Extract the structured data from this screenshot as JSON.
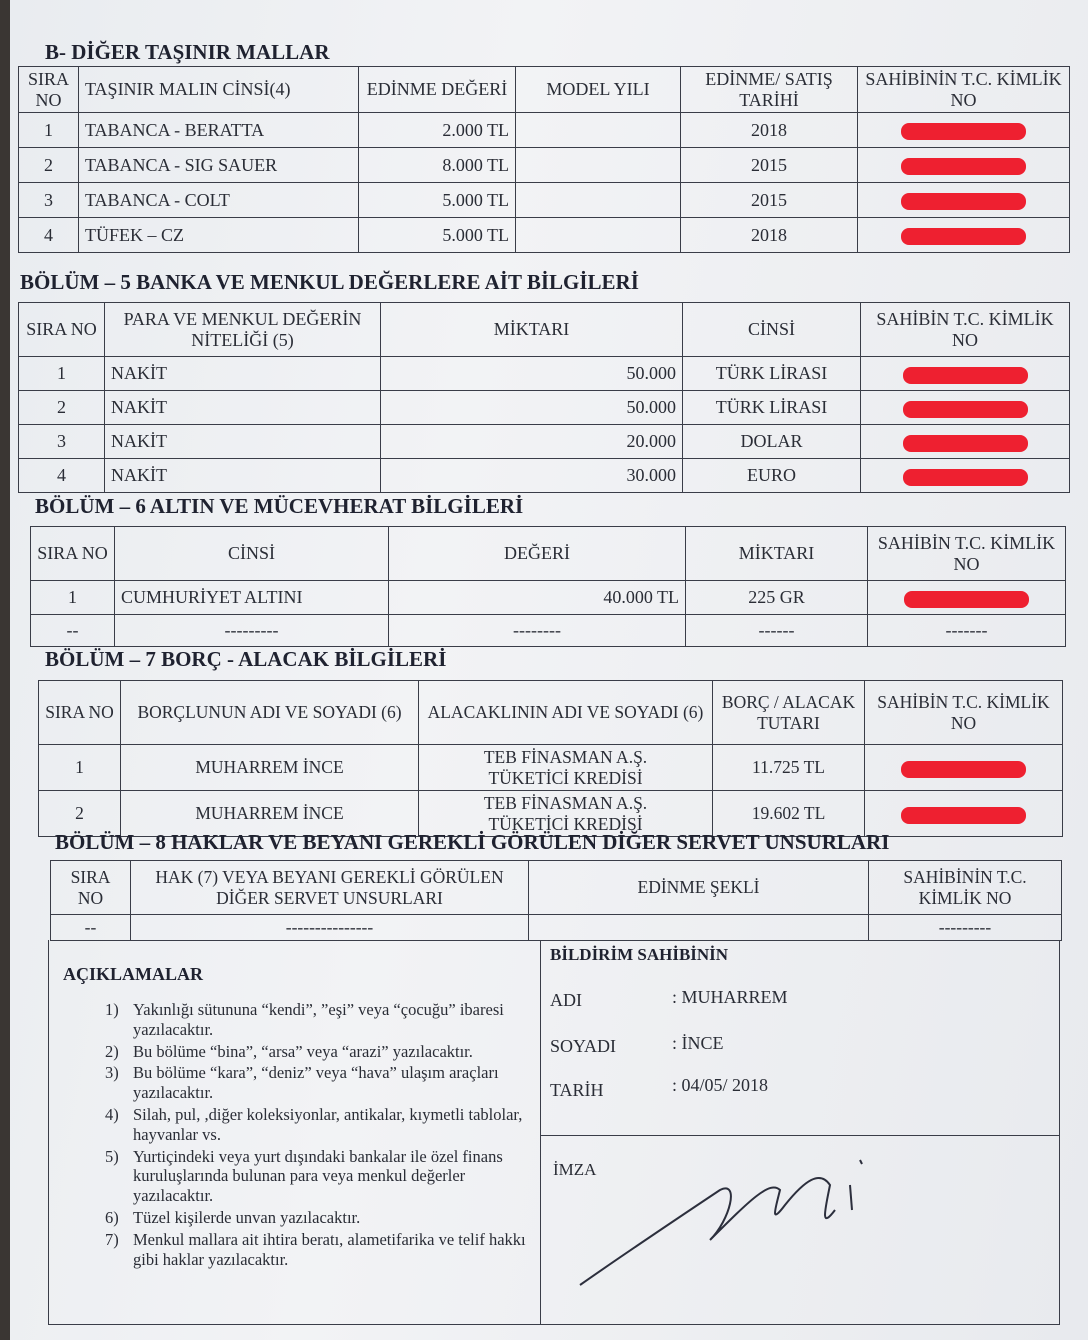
{
  "sectionB": {
    "title": "B-  DİĞER TAŞINIR MALLAR",
    "headers": [
      "SIRA NO",
      "TAŞINIR MALIN CİNSİ(4)",
      "EDİNME DEĞERİ",
      "MODEL YILI",
      "EDİNME/ SATIŞ TARİHİ",
      "SAHİBİNİN T.C. KİMLİK NO"
    ],
    "rows": [
      {
        "no": "1",
        "cinsi": "TABANCA -  BERATTA",
        "deger": "2.000 TL",
        "model": "",
        "tarih": "2018"
      },
      {
        "no": "2",
        "cinsi": "TABANCA -  SIG SAUER",
        "deger": "8.000 TL",
        "model": "",
        "tarih": "2015"
      },
      {
        "no": "3",
        "cinsi": "TABANCA - COLT",
        "deger": "5.000 TL",
        "model": "",
        "tarih": "2015"
      },
      {
        "no": "4",
        "cinsi": "TÜFEK – CZ",
        "deger": "5.000 TL",
        "model": "",
        "tarih": "2018"
      }
    ]
  },
  "section5": {
    "title": "BÖLÜM – 5 BANKA VE MENKUL DEĞERLERE AİT BİLGİLERİ",
    "headers": [
      "SIRA NO",
      "PARA VE MENKUL DEĞERİN NİTELİĞİ (5)",
      "MİKTARI",
      "CİNSİ",
      "SAHİBİN T.C. KİMLİK NO"
    ],
    "rows": [
      {
        "no": "1",
        "nitelik": "NAKİT",
        "miktar": "50.000",
        "cinsi": "TÜRK LİRASI"
      },
      {
        "no": "2",
        "nitelik": "NAKİT",
        "miktar": "50.000",
        "cinsi": "TÜRK LİRASI"
      },
      {
        "no": "3",
        "nitelik": "NAKİT",
        "miktar": "20.000",
        "cinsi": "DOLAR"
      },
      {
        "no": "4",
        "nitelik": "NAKİT",
        "miktar": "30.000",
        "cinsi": "EURO"
      }
    ]
  },
  "section6": {
    "title": "BÖLÜM – 6 ALTIN VE MÜCEVHERAT BİLGİLERİ",
    "headers": [
      "SIRA NO",
      "CİNSİ",
      "DEĞERİ",
      "MİKTARI",
      "SAHİBİN T.C. KİMLİK NO"
    ],
    "rows": [
      {
        "no": "1",
        "cinsi": "CUMHURİYET ALTINI",
        "deger": "40.000 TL",
        "miktar": "225 GR",
        "tc": ""
      },
      {
        "no": "--",
        "cinsi": "---------",
        "deger": "--------",
        "miktar": "------",
        "tc": "-------"
      }
    ]
  },
  "section7": {
    "title": "BÖLÜM – 7 BORÇ - ALACAK BİLGİLERİ",
    "headers": [
      "SIRA NO",
      "BORÇLUNUN ADI VE SOYADI (6)",
      "ALACAKLININ ADI VE SOYADI (6)",
      "BORÇ / ALACAK TUTARI",
      "SAHİBİN T.C. KİMLİK NO"
    ],
    "rows": [
      {
        "no": "1",
        "borclu": "MUHARREM İNCE",
        "alacakli1": "TEB FİNASMAN A.Ş.",
        "alacakli2": "TÜKETİCİ KREDİSİ",
        "tutar": "11.725 TL"
      },
      {
        "no": "2",
        "borclu": "MUHARREM İNCE",
        "alacakli1": "TEB FİNASMAN A.Ş.",
        "alacakli2": "TÜKETİCİ KREDİSİ",
        "tutar": "19.602 TL"
      }
    ]
  },
  "section8": {
    "title": "BÖLÜM – 8 HAKLAR VE BEYANI GEREKLİ GÖRÜLEN DİĞER SERVET UNSURLARI",
    "headers": [
      "SIRA NO",
      "HAK (7) VEYA BEYANI GEREKLİ GÖRÜLEN DİĞER SERVET UNSURLARI",
      "EDİNME ŞEKLİ",
      "SAHİBİNİN T.C. KİMLİK NO"
    ],
    "row": {
      "no": "--",
      "hak": "---------------",
      "sekil": "",
      "tc": "---------"
    }
  },
  "notes": {
    "title": "AÇIKLAMALAR",
    "items": [
      {
        "n": "1)",
        "t": "Yakınlığı sütununa “kendi”, ”eşi” veya “çocuğu” ibaresi yazılacaktır."
      },
      {
        "n": "2)",
        "t": "Bu bölüme “bina”, “arsa” veya “arazi” yazılacaktır."
      },
      {
        "n": "3)",
        "t": "Bu bölüme “kara”, “deniz” veya “hava” ulaşım araçları yazılacaktır."
      },
      {
        "n": "4)",
        "t": "Silah, pul, ,diğer koleksiyonlar, antikalar, kıymetli tablolar, hayvanlar vs."
      },
      {
        "n": "5)",
        "t": "Yurtiçindeki veya yurt dışındaki bankalar ile özel finans kuruluşlarında bulunan para veya menkul değerler yazılacaktır."
      },
      {
        "n": "6)",
        "t": "Tüzel kişilerde unvan yazılacaktır."
      },
      {
        "n": "7)",
        "t": "Menkul mallara ait ihtira beratı, alametifarika ve telif hakkı gibi haklar yazılacaktır."
      }
    ]
  },
  "declarant": {
    "title": "BİLDİRİM SAHİBİNİN",
    "ad_label": "ADI",
    "ad": ": MUHARREM",
    "soyad_label": "SOYADI",
    "soyad": ": İNCE",
    "tarih_label": "TARİH",
    "tarih": ": 04/05/ 2018",
    "imza_label": "İMZA"
  }
}
